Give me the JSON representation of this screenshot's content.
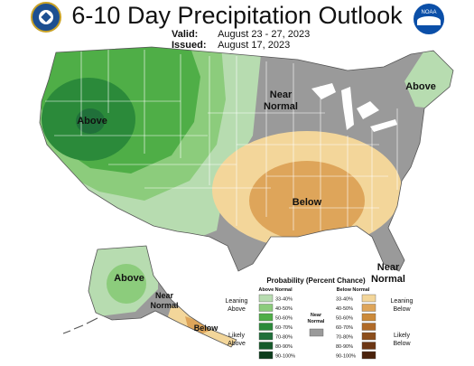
{
  "header": {
    "title": "6-10 Day Precipitation Outlook",
    "valid_label": "Valid:",
    "valid_value": "August 23 - 27, 2023",
    "issued_label": "Issued:",
    "issued_value": "August 17, 2023"
  },
  "logos": {
    "left": "commerce-seal-icon",
    "right": "noaa-logo-icon",
    "noaa_text": "NOAA"
  },
  "map_labels": {
    "above_west": "Above",
    "near_normal_central_line1": "Near",
    "near_normal_central_line2": "Normal",
    "above_northeast": "Above",
    "below_southeast": "Below",
    "near_normal_florida_line1": "Near",
    "near_normal_florida_line2": "Normal",
    "above_alaska": "Above",
    "near_normal_alaska_line1": "Near",
    "near_normal_alaska_line2": "Normal",
    "below_alaska": "Below"
  },
  "legend": {
    "title": "Probability (Percent Chance)",
    "above_header": "Above Normal",
    "below_header": "Below Normal",
    "near_header_line1": "Near",
    "near_header_line2": "Normal",
    "leaning_above_line1": "Leaning",
    "leaning_above_line2": "Above",
    "likely_above_line1": "Likely",
    "likely_above_line2": "Above",
    "leaning_below_line1": "Leaning",
    "leaning_below_line2": "Below",
    "likely_below_line1": "Likely",
    "likely_below_line2": "Below",
    "above_ranges": [
      "33-40%",
      "40-50%",
      "50-60%",
      "60-70%",
      "70-80%",
      "80-90%",
      "90-100%"
    ],
    "below_ranges": [
      "33-40%",
      "40-50%",
      "50-60%",
      "60-70%",
      "70-80%",
      "80-90%",
      "90-100%"
    ]
  },
  "colors": {
    "above": [
      "#b7dcb0",
      "#8ccc7c",
      "#4fae47",
      "#2b8a3a",
      "#20703a",
      "#155a2a",
      "#0c3d1c"
    ],
    "below": [
      "#f3d69a",
      "#dea55a",
      "#cc8a3a",
      "#b06a28",
      "#8c4e1c",
      "#6c3614",
      "#4a220c"
    ],
    "near_normal": "#9a9a9a",
    "state_lines": "#ffffff",
    "outline": "#555555"
  }
}
